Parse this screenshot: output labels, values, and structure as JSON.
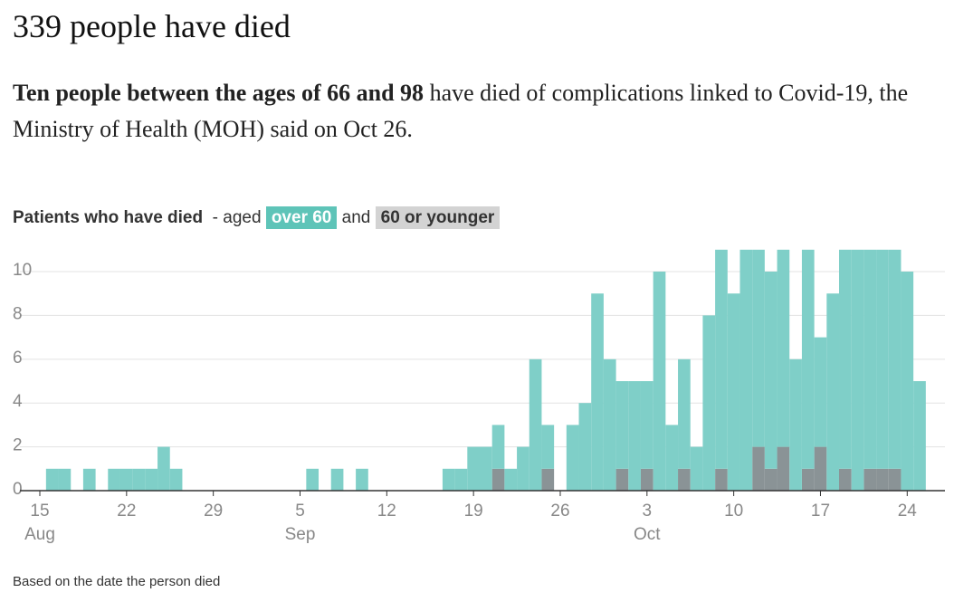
{
  "header": {
    "title": "339 people have died",
    "subtitle_bold": "Ten people between the ages of 66 and 98",
    "subtitle_rest": " have died of complications linked to Covid-19, the Ministry of Health (MOH) said on Oct 26."
  },
  "chart_data": {
    "type": "bar",
    "stacked": true,
    "legend_title": "Patients who have died",
    "legend_aged": "- aged",
    "legend_and": "and",
    "categories": [
      "Aug 15",
      "Aug 16",
      "Aug 17",
      "Aug 18",
      "Aug 19",
      "Aug 20",
      "Aug 21",
      "Aug 22",
      "Aug 23",
      "Aug 24",
      "Aug 25",
      "Aug 26",
      "Aug 27",
      "Aug 28",
      "Aug 29",
      "Aug 30",
      "Aug 31",
      "Sep 1",
      "Sep 2",
      "Sep 3",
      "Sep 4",
      "Sep 5",
      "Sep 6",
      "Sep 7",
      "Sep 8",
      "Sep 9",
      "Sep 10",
      "Sep 11",
      "Sep 12",
      "Sep 13",
      "Sep 14",
      "Sep 15",
      "Sep 16",
      "Sep 17",
      "Sep 18",
      "Sep 19",
      "Sep 20",
      "Sep 21",
      "Sep 22",
      "Sep 23",
      "Sep 24",
      "Sep 25",
      "Sep 26",
      "Sep 27",
      "Sep 28",
      "Sep 29",
      "Sep 30",
      "Oct 1",
      "Oct 2",
      "Oct 3",
      "Oct 4",
      "Oct 5",
      "Oct 6",
      "Oct 7",
      "Oct 8",
      "Oct 9",
      "Oct 10",
      "Oct 11",
      "Oct 12",
      "Oct 13",
      "Oct 14",
      "Oct 15",
      "Oct 16",
      "Oct 17",
      "Oct 18",
      "Oct 19",
      "Oct 20",
      "Oct 21",
      "Oct 22",
      "Oct 23",
      "Oct 24",
      "Oct 25"
    ],
    "series": [
      {
        "name": "60 or younger",
        "color": "#8a9396",
        "legend_color": "#d3d3d3",
        "values": [
          0,
          0,
          0,
          0,
          0,
          0,
          0,
          0,
          0,
          0,
          0,
          0,
          0,
          0,
          0,
          0,
          0,
          0,
          0,
          0,
          0,
          0,
          0,
          0,
          0,
          0,
          0,
          0,
          0,
          0,
          0,
          0,
          0,
          0,
          0,
          0,
          0,
          1,
          0,
          0,
          0,
          1,
          0,
          0,
          0,
          0,
          0,
          1,
          0,
          1,
          0,
          0,
          1,
          0,
          0,
          1,
          0,
          0,
          2,
          1,
          2,
          0,
          1,
          2,
          0,
          1,
          0,
          1,
          1,
          1,
          0,
          0
        ]
      },
      {
        "name": "over 60",
        "color": "#7fcfc8",
        "legend_color": "#5ec4b8",
        "values": [
          0,
          1,
          1,
          0,
          1,
          0,
          1,
          1,
          1,
          1,
          2,
          1,
          0,
          0,
          0,
          0,
          0,
          0,
          0,
          0,
          0,
          0,
          1,
          0,
          1,
          0,
          1,
          0,
          0,
          0,
          0,
          0,
          0,
          1,
          1,
          2,
          2,
          2,
          1,
          2,
          6,
          2,
          0,
          3,
          4,
          9,
          6,
          4,
          5,
          4,
          10,
          3,
          5,
          2,
          8,
          10,
          9,
          11,
          9,
          9,
          9,
          6,
          10,
          5,
          9,
          10,
          11,
          10,
          10,
          10,
          10,
          5
        ]
      }
    ],
    "ylim": [
      0,
      11.2
    ],
    "yticks": [
      0,
      2,
      4,
      6,
      8,
      10
    ],
    "grid": true,
    "xticks": [
      {
        "value": "Aug 15",
        "label": "15"
      },
      {
        "value": "Aug 22",
        "label": "22"
      },
      {
        "value": "Aug 29",
        "label": "29"
      },
      {
        "value": "Sep 5",
        "label": "5"
      },
      {
        "value": "Sep 12",
        "label": "12"
      },
      {
        "value": "Sep 19",
        "label": "19"
      },
      {
        "value": "Sep 26",
        "label": "26"
      },
      {
        "value": "Oct 3",
        "label": "3"
      },
      {
        "value": "Oct 10",
        "label": "10"
      },
      {
        "value": "Oct 17",
        "label": "17"
      },
      {
        "value": "Oct 24",
        "label": "24"
      }
    ],
    "month_labels": [
      {
        "value": "Aug 15",
        "label": "Aug"
      },
      {
        "value": "Sep 5",
        "label": "Sep"
      },
      {
        "value": "Oct 3",
        "label": "Oct"
      }
    ],
    "note": "Based on the date the person died"
  }
}
